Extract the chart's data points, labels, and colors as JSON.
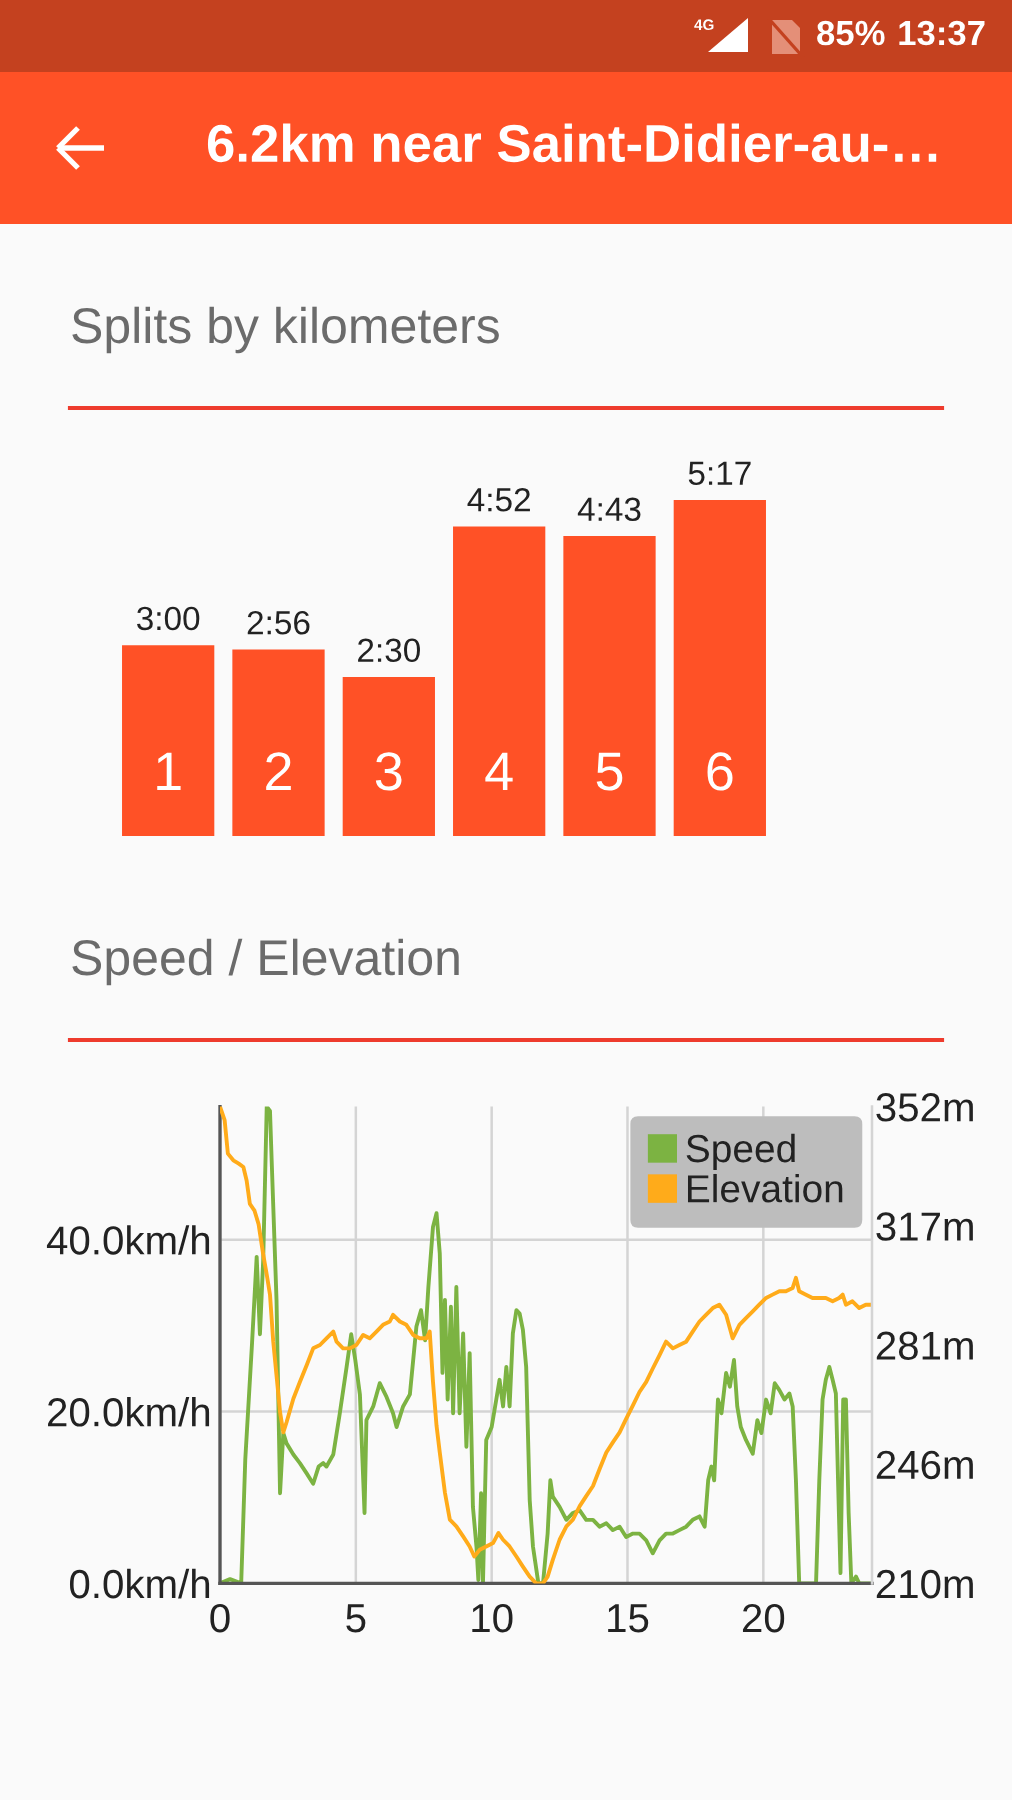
{
  "chart_data": [
    {
      "type": "other",
      "title": "6.2km near Saint-Didier-au-…",
      "annotations": [
        "4G",
        "85%",
        "13:37"
      ]
    },
    {
      "type": "bar",
      "title": "Splits by kilometers",
      "categories": [
        "1",
        "2",
        "3",
        "4",
        "5",
        "6"
      ],
      "values": [
        180,
        176,
        150,
        292,
        283,
        317
      ],
      "value_labels": [
        "3:00",
        "2:56",
        "2:30",
        "4:52",
        "4:43",
        "5:17"
      ],
      "color": "#ff5126",
      "tick_labels": "x"
    },
    {
      "type": "line",
      "title": "Speed / Elevation",
      "xlim": [
        0,
        24
      ],
      "xticks": [
        0,
        5,
        10,
        15,
        20
      ],
      "ylim": [
        0,
        55.5
      ],
      "yticks": [
        {
          "value": 0,
          "label": "0.0km/h"
        },
        {
          "value": 20,
          "label": "20.0km/h"
        },
        {
          "value": 40,
          "label": "40.0km/h"
        }
      ],
      "y2lim": [
        210,
        352
      ],
      "y2ticks": [
        {
          "value": 210,
          "label": "210m"
        },
        {
          "value": 245.5,
          "label": "246m"
        },
        {
          "value": 281,
          "label": "281m"
        },
        {
          "value": 316.5,
          "label": "317m"
        },
        {
          "value": 352,
          "label": "352m"
        }
      ],
      "grid": true,
      "legend": "top right",
      "series": [
        {
          "name": "Speed",
          "color": "#7cb342",
          "x": [
            0,
            0.37,
            0.78,
            0.93,
            1.18,
            1.35,
            1.47,
            1.59,
            1.72,
            1.84,
            1.91,
            2.08,
            2.21,
            2.33,
            2.45,
            2.7,
            2.94,
            3.19,
            3.43,
            3.63,
            3.8,
            3.92,
            4.17,
            4.41,
            4.66,
            4.83,
            4.98,
            5.15,
            5.32,
            5.39,
            5.64,
            5.88,
            6.13,
            6.37,
            6.5,
            6.74,
            6.99,
            7.23,
            7.4,
            7.55,
            7.67,
            7.84,
            7.97,
            8.09,
            8.19,
            8.28,
            8.38,
            8.5,
            8.58,
            8.7,
            8.82,
            8.95,
            9.07,
            9.19,
            9.31,
            9.44,
            9.51,
            9.61,
            9.68,
            9.8,
            10.0,
            10.17,
            10.29,
            10.42,
            10.54,
            10.66,
            10.78,
            10.91,
            11.03,
            11.15,
            11.27,
            11.4,
            11.52,
            11.72,
            11.89,
            12.06,
            12.16,
            12.25,
            12.5,
            12.75,
            12.99,
            13.24,
            13.48,
            13.73,
            13.97,
            14.22,
            14.46,
            14.71,
            14.95,
            15.2,
            15.44,
            15.69,
            15.93,
            16.18,
            16.42,
            16.67,
            16.91,
            17.16,
            17.4,
            17.65,
            17.84,
            17.97,
            18.09,
            18.19,
            18.33,
            18.46,
            18.63,
            18.77,
            18.92,
            19.04,
            19.17,
            19.36,
            19.61,
            19.78,
            19.93,
            20.1,
            20.27,
            20.42,
            20.59,
            20.78,
            20.96,
            21.08,
            21.2,
            21.32,
            21.94,
            22.06,
            22.18,
            22.3,
            22.43,
            22.55,
            22.67,
            22.75,
            22.84,
            22.94,
            23.04,
            23.14,
            23.24,
            23.41,
            23.53,
            23.9
          ],
          "values": [
            0,
            0.5,
            0,
            14.4,
            28,
            38,
            29,
            37.6,
            55.5,
            55,
            48.5,
            33,
            10.5,
            17.5,
            16.3,
            15,
            14,
            12.8,
            11.6,
            13.6,
            14,
            13.6,
            15,
            19.8,
            25.2,
            29,
            26,
            22,
            8.2,
            19,
            20.6,
            23.3,
            21.7,
            19.8,
            18.2,
            20.6,
            22,
            29.9,
            31.8,
            28.3,
            34.5,
            41.5,
            43.1,
            38.4,
            24.5,
            33,
            21.4,
            32.2,
            19.8,
            34.5,
            19.8,
            29.1,
            15.9,
            26.8,
            8.9,
            4.3,
            0.4,
            10.5,
            0,
            16.7,
            18.2,
            21.4,
            23.7,
            20.6,
            25.2,
            20.6,
            29.1,
            31.8,
            31.4,
            29.5,
            25.2,
            9.7,
            4.3,
            0,
            0,
            5.8,
            12,
            10.1,
            8.9,
            7.4,
            8.2,
            8.5,
            7.4,
            7.4,
            6.6,
            7,
            6.2,
            6.6,
            5.4,
            5.8,
            5.8,
            5,
            3.5,
            5,
            5.8,
            5.8,
            6.2,
            6.6,
            7.4,
            7.8,
            6.6,
            12,
            13.6,
            12,
            21.4,
            19.8,
            24.5,
            22.9,
            26,
            20.6,
            18.2,
            16.7,
            15.1,
            19,
            17.5,
            21.4,
            19.8,
            23.3,
            22.5,
            21.4,
            22.1,
            20.6,
            12,
            0,
            0,
            12,
            21.4,
            23.7,
            25.2,
            23.7,
            22.1,
            12,
            1.2,
            21.4,
            21.4,
            8.2,
            0,
            0.8,
            0,
            0
          ]
        },
        {
          "name": "Elevation",
          "color": "#ffab1a",
          "axis": "y2",
          "x": [
            0,
            0.17,
            0.29,
            0.49,
            0.69,
            0.86,
            0.98,
            1.1,
            1.27,
            1.42,
            1.59,
            1.72,
            1.84,
            1.96,
            2.08,
            2.21,
            2.33,
            2.45,
            2.7,
            2.94,
            3.19,
            3.43,
            3.68,
            3.92,
            4.17,
            4.29,
            4.53,
            4.78,
            5.02,
            5.27,
            5.51,
            5.76,
            6.0,
            6.25,
            6.37,
            6.62,
            6.86,
            7.11,
            7.35,
            7.6,
            7.72,
            7.84,
            7.97,
            8.09,
            8.28,
            8.46,
            8.7,
            8.95,
            9.19,
            9.36,
            9.56,
            9.8,
            10.05,
            10.25,
            10.42,
            10.66,
            10.91,
            11.15,
            11.4,
            11.64,
            11.89,
            12.06,
            12.25,
            12.5,
            12.75,
            12.99,
            13.24,
            13.48,
            13.73,
            13.97,
            14.22,
            14.46,
            14.71,
            14.95,
            15.2,
            15.44,
            15.69,
            15.93,
            16.18,
            16.42,
            16.67,
            16.91,
            17.16,
            17.4,
            17.65,
            17.89,
            18.14,
            18.38,
            18.63,
            18.87,
            19.12,
            19.36,
            19.61,
            19.85,
            20.1,
            20.34,
            20.59,
            20.83,
            21.08,
            21.2,
            21.32,
            21.57,
            21.81,
            22.06,
            22.3,
            22.55,
            22.79,
            22.92,
            23.04,
            23.28,
            23.53,
            23.77,
            23.9
          ],
          "values": [
            352,
            348,
            338,
            336,
            335,
            334,
            330,
            323,
            321,
            317,
            308,
            302,
            296,
            282,
            272,
            261,
            255,
            258,
            265,
            270,
            275,
            280,
            281,
            283,
            285,
            282,
            280,
            280,
            281,
            284,
            283,
            285,
            287,
            288,
            290,
            288,
            287,
            284,
            283,
            283,
            285,
            270,
            257,
            249,
            237,
            229,
            227,
            224,
            221,
            218,
            220,
            221,
            222,
            225,
            223,
            221,
            218,
            215,
            212,
            210,
            210,
            212,
            217,
            223,
            227,
            229,
            233,
            236,
            239,
            244,
            249,
            252,
            255,
            259,
            263,
            267,
            270,
            274,
            278,
            282,
            280,
            281,
            282,
            285,
            288,
            290,
            292,
            293,
            290,
            283,
            287,
            289,
            291,
            293,
            295,
            296,
            297,
            297,
            298,
            301,
            297,
            296,
            295,
            295,
            295,
            294,
            295,
            296,
            293,
            294,
            292,
            293,
            293
          ]
        }
      ]
    }
  ]
}
